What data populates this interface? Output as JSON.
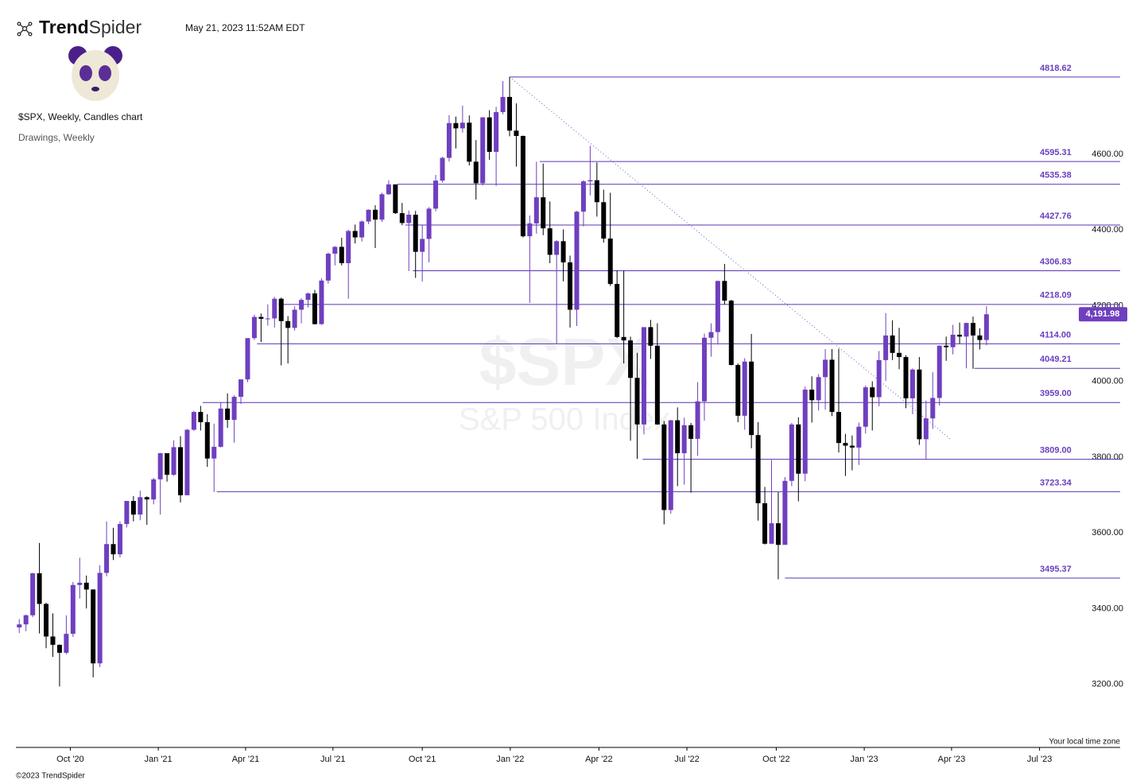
{
  "header": {
    "logo_bold": "Trend",
    "logo_light": "Spider",
    "timestamp": "May 21, 2023 11:52AM EDT",
    "symbol_line": "$SPX, Weekly, Candles chart",
    "drawings_line": "Drawings, Weekly"
  },
  "footer": {
    "copyright": "©2023 TrendSpider",
    "timezone": "Your local time zone"
  },
  "chart_data": {
    "type": "candlestick",
    "watermark": "$SPX",
    "watermark_sub": "S&P 500 Index",
    "up_color": "#6f3fbf",
    "down_color": "#000000",
    "level_color": "#5b34b5",
    "xlim": [
      -0.5,
      163.9
    ],
    "ylim": [
      3048,
      4854
    ],
    "xticks": [
      {
        "value": 7.6,
        "label": "Oct '20"
      },
      {
        "value": 20.7,
        "label": "Jan '21"
      },
      {
        "value": 33.7,
        "label": "Apr '21"
      },
      {
        "value": 46.7,
        "label": "Jul '21"
      },
      {
        "value": 60,
        "label": "Oct '21"
      },
      {
        "value": 73.1,
        "label": "Jan '22"
      },
      {
        "value": 86.3,
        "label": "Apr '22"
      },
      {
        "value": 99.4,
        "label": "Jul '22"
      },
      {
        "value": 112.7,
        "label": "Oct '22"
      },
      {
        "value": 125.8,
        "label": "Jan '23"
      },
      {
        "value": 138.8,
        "label": "Apr '23"
      },
      {
        "value": 151.9,
        "label": "Jul '23"
      }
    ],
    "yticks": [
      {
        "value": 3200,
        "label": "3200.00"
      },
      {
        "value": 3400,
        "label": "3400.00"
      },
      {
        "value": 3600,
        "label": "3600.00"
      },
      {
        "value": 3800,
        "label": "3800.00"
      },
      {
        "value": 4000,
        "label": "4000.00"
      },
      {
        "value": 4200,
        "label": "4200.00"
      },
      {
        "value": 4400,
        "label": "4400.00"
      },
      {
        "value": 4600,
        "label": "4600.00"
      }
    ],
    "last_price": {
      "value": 4191.98,
      "label": "4,191.98"
    },
    "levels": [
      {
        "value": 4818.62,
        "label": "4818.62",
        "x": 73
      },
      {
        "value": 4595.31,
        "label": "4595.31",
        "x": 77.5
      },
      {
        "value": 4535.38,
        "label": "4535.38",
        "x": 56.3
      },
      {
        "value": 4427.76,
        "label": "4427.76",
        "x": 57.5
      },
      {
        "value": 4306.83,
        "label": "4306.83",
        "x": 58.6
      },
      {
        "value": 4218.09,
        "label": "4218.09",
        "x": 38.6
      },
      {
        "value": 4114,
        "label": "4114.00",
        "x": 35.4
      },
      {
        "value": 4049.21,
        "label": "4049.21",
        "x": 142.2
      },
      {
        "value": 3959,
        "label": "3959.00",
        "x": 27.3
      },
      {
        "value": 3809,
        "label": "3809.00",
        "x": 92.8
      },
      {
        "value": 3723.34,
        "label": "3723.34",
        "x": 29.4
      },
      {
        "value": 3495.37,
        "label": "3495.37",
        "x": 114
      }
    ],
    "trendline": {
      "x": [
        73,
        138.8
      ],
      "y": [
        4818.62,
        3860
      ]
    },
    "open": [
      3365,
      3373,
      3397,
      3508,
      3427,
      3341,
      3319,
      3298,
      3348,
      3477,
      3483,
      3465,
      3270,
      3509,
      3585,
      3558,
      3638,
      3699,
      3663,
      3709,
      3703,
      3756,
      3825,
      3768,
      3841,
      3714,
      3887,
      3934,
      3907,
      3811,
      3842,
      3943,
      3913,
      3974,
      4020,
      4129,
      4185,
      4180,
      4181,
      4233,
      4174,
      4156,
      4204,
      4230,
      4247,
      4166,
      4281,
      4352,
      4370,
      4327,
      4412,
      4395,
      4437,
      4468,
      4442,
      4509,
      4535,
      4459,
      4433,
      4455,
      4357,
      4391,
      4471,
      4545,
      4605,
      4697,
      4683,
      4698,
      4595,
      4538,
      4712,
      4621,
      4726,
      4766,
      4677,
      4663,
      4398,
      4432,
      4501,
      4419,
      4349,
      4385,
      4329,
      4204,
      4463,
      4543,
      4546,
      4488,
      4392,
      4272,
      4132,
      4123,
      4024,
      3901,
      4158,
      4109,
      3901,
      3675,
      3912,
      3825,
      3899,
      3863,
      3962,
      4130,
      4145,
      4280,
      4228,
      4058,
      3924,
      4067,
      3873,
      3693,
      3586,
      3640,
      3583,
      3752,
      3901,
      3771,
      3993,
      3965,
      4026,
      4072,
      3934,
      3852,
      3845,
      3840,
      3895,
      3999,
      3973,
      4071,
      4136,
      4090,
      4079,
      3970,
      4046,
      3862,
      3917,
      3971,
      4109,
      4105,
      4138,
      4133,
      4169,
      4136,
      4124
    ],
    "high": [
      3387,
      3399,
      3509,
      3588,
      3430,
      3402,
      3320,
      3397,
      3485,
      3549,
      3502,
      3466,
      3529,
      3645,
      3628,
      3645,
      3699,
      3712,
      3726,
      3711,
      3760,
      3826,
      3823,
      3859,
      3870,
      3889,
      3937,
      3950,
      3928,
      3903,
      3960,
      3983,
      3978,
      4020,
      4129,
      4191,
      4194,
      4218,
      4238,
      4236,
      4187,
      4213,
      4234,
      4249,
      4256,
      4287,
      4355,
      4372,
      4394,
      4415,
      4429,
      4440,
      4469,
      4480,
      4513,
      4546,
      4535,
      4486,
      4466,
      4465,
      4429,
      4475,
      4560,
      4608,
      4718,
      4714,
      4743,
      4717,
      4652,
      4713,
      4731,
      4740,
      4808,
      4819,
      4749,
      4664,
      4453,
      4595,
      4590,
      4490,
      4388,
      4416,
      4347,
      4465,
      4546,
      4637,
      4593,
      4521,
      4513,
      4308,
      4307,
      4133,
      4090,
      4158,
      4177,
      4168,
      3910,
      3913,
      3946,
      3919,
      3905,
      4013,
      4141,
      4168,
      4281,
      4325,
      4230,
      4062,
      4076,
      4140,
      3907,
      3736,
      3807,
      3722,
      3762,
      3905,
      3920,
      4001,
      4028,
      4034,
      4100,
      4100,
      4101,
      3876,
      3872,
      3906,
      4004,
      4015,
      4095,
      4195,
      4176,
      4156,
      4084,
      4049,
      4079,
      3964,
      4039,
      4110,
      4133,
      4164,
      4170,
      4170,
      4186,
      4155,
      4213
    ],
    "low": [
      3350,
      3355,
      3392,
      3349,
      3310,
      3287,
      3209,
      3294,
      3340,
      3441,
      3415,
      3233,
      3260,
      3500,
      3543,
      3550,
      3629,
      3645,
      3648,
      3636,
      3690,
      3663,
      3750,
      3765,
      3695,
      3725,
      3884,
      3885,
      3789,
      3723,
      3840,
      3892,
      3853,
      3955,
      4013,
      4124,
      4119,
      4162,
      4157,
      4057,
      4062,
      4149,
      4168,
      4210,
      4165,
      4164,
      4273,
      4321,
      4321,
      4233,
      4379,
      4384,
      4430,
      4367,
      4436,
      4507,
      4457,
      4427,
      4306,
      4288,
      4278,
      4329,
      4464,
      4540,
      4595,
      4630,
      4672,
      4585,
      4495,
      4532,
      4600,
      4531,
      4720,
      4662,
      4582,
      4395,
      4222,
      4405,
      4401,
      4327,
      4115,
      4279,
      4157,
      4161,
      4424,
      4506,
      4450,
      4381,
      4267,
      4129,
      4062,
      3858,
      3810,
      3875,
      4074,
      3900,
      3637,
      3665,
      3738,
      3742,
      3721,
      3818,
      3911,
      4080,
      4112,
      4218,
      4057,
      3907,
      3887,
      3838,
      3647,
      3584,
      3585,
      3492,
      3590,
      3738,
      3698,
      3751,
      3906,
      3938,
      3940,
      3923,
      3827,
      3765,
      3780,
      3794,
      3877,
      3885,
      3949,
      4016,
      4071,
      4047,
      3944,
      3928,
      3847,
      3809,
      3889,
      3951,
      4069,
      4086,
      4114,
      4049,
      4048,
      4099,
      4110
    ],
    "close": [
      3373,
      3397,
      3508,
      3427,
      3341,
      3319,
      3298,
      3348,
      3477,
      3483,
      3465,
      3270,
      3509,
      3585,
      3558,
      3638,
      3699,
      3663,
      3709,
      3703,
      3756,
      3825,
      3768,
      3841,
      3714,
      3887,
      3934,
      3907,
      3811,
      3842,
      3943,
      3913,
      3974,
      4020,
      4129,
      4185,
      4180,
      4181,
      4233,
      4174,
      4156,
      4204,
      4230,
      4247,
      4166,
      4281,
      4352,
      4370,
      4327,
      4412,
      4395,
      4437,
      4468,
      4442,
      4509,
      4535,
      4459,
      4433,
      4455,
      4357,
      4391,
      4471,
      4545,
      4605,
      4697,
      4683,
      4698,
      4595,
      4538,
      4712,
      4621,
      4726,
      4766,
      4677,
      4663,
      4398,
      4432,
      4501,
      4419,
      4349,
      4385,
      4329,
      4204,
      4463,
      4543,
      4546,
      4488,
      4392,
      4272,
      4132,
      4123,
      4024,
      3901,
      4158,
      4109,
      3901,
      3675,
      3912,
      3825,
      3899,
      3863,
      3962,
      4130,
      4145,
      4280,
      4228,
      4058,
      3924,
      4067,
      3873,
      3693,
      3586,
      3640,
      3583,
      3752,
      3901,
      3771,
      3993,
      3965,
      4026,
      4072,
      3934,
      3852,
      3845,
      3840,
      3895,
      3999,
      3973,
      4071,
      4136,
      4090,
      4079,
      3970,
      4046,
      3862,
      3917,
      3971,
      4109,
      4105,
      4138,
      4133,
      4169,
      4136,
      4124,
      4191.98
    ]
  }
}
